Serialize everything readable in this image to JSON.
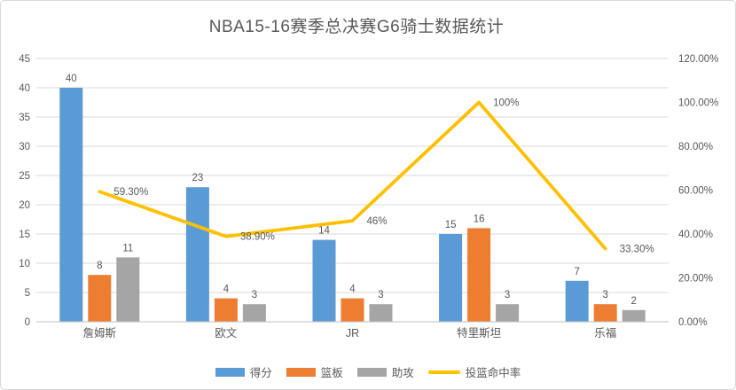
{
  "chart_data": {
    "type": "combo-bar-line",
    "title": "NBA15-16赛季总决赛G6骑士数据统计",
    "categories": [
      "詹姆斯",
      "欧文",
      "JR",
      "特里斯坦",
      "乐福"
    ],
    "series": [
      {
        "key": "points",
        "name": "得分",
        "type": "bar",
        "color": "#5B9BD5",
        "axis": "left",
        "values": [
          40,
          23,
          14,
          15,
          7
        ]
      },
      {
        "key": "rebounds",
        "name": "篮板",
        "type": "bar",
        "color": "#ED7D31",
        "axis": "left",
        "values": [
          8,
          4,
          4,
          16,
          3
        ]
      },
      {
        "key": "assists",
        "name": "助攻",
        "type": "bar",
        "color": "#A5A5A5",
        "axis": "left",
        "values": [
          11,
          3,
          3,
          3,
          2
        ]
      },
      {
        "key": "fg-pct",
        "name": "投篮命中率",
        "type": "line",
        "color": "#FFC000",
        "axis": "right",
        "values": [
          0.593,
          0.389,
          0.46,
          1.0,
          0.333
        ],
        "labels": [
          "59.30%",
          "38.90%",
          "46%",
          "100%",
          "33.30%"
        ]
      }
    ],
    "left_axis": {
      "min": 0,
      "max": 45,
      "tick_labels": [
        "0",
        "5",
        "10",
        "15",
        "20",
        "25",
        "30",
        "35",
        "40",
        "45"
      ]
    },
    "right_axis": {
      "min": 0,
      "max": 1.2,
      "tick_labels": [
        "0.00%",
        "20.00%",
        "40.00%",
        "60.00%",
        "80.00%",
        "100.00%",
        "120.00%"
      ]
    },
    "legend_position": "bottom",
    "grid": true,
    "colors": {
      "text": "#595959",
      "grid": "#d9d9d9",
      "axis_line": "#bfbfbf",
      "border": "#d9d9d9"
    }
  }
}
